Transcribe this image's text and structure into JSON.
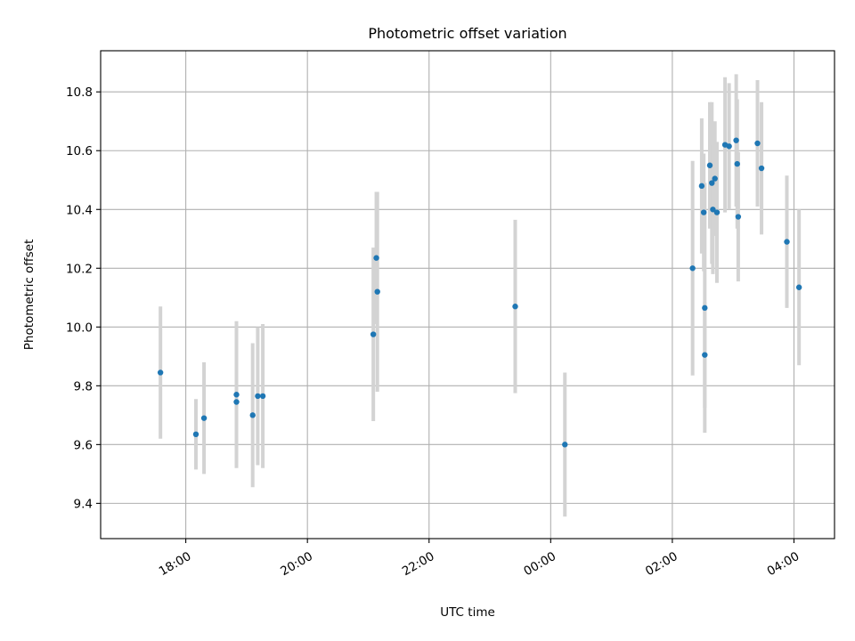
{
  "chart_data": {
    "type": "scatter",
    "title": "Photometric offset variation",
    "xlabel": "UTC time",
    "ylabel": "Photometric offset",
    "x_ticks": [
      "18:00",
      "20:00",
      "22:00",
      "00:00",
      "02:00",
      "04:00"
    ],
    "y_ticks": [
      "9.4",
      "9.6",
      "9.8",
      "10.0",
      "10.2",
      "10.4",
      "10.6",
      "10.8"
    ],
    "xlim": [
      "16:36",
      "04:40"
    ],
    "ylim": [
      9.28,
      10.94
    ],
    "grid": true,
    "marker_color": "#1f77b4",
    "errorbar_color": "#d3d3d3",
    "points": [
      {
        "x": "17:35",
        "y": 9.845,
        "err": 0.225
      },
      {
        "x": "18:10",
        "y": 9.635,
        "err": 0.12
      },
      {
        "x": "18:18",
        "y": 9.69,
        "err": 0.19
      },
      {
        "x": "18:50",
        "y": 9.77,
        "err": 0.25
      },
      {
        "x": "18:50",
        "y": 9.745,
        "err": 0.2
      },
      {
        "x": "19:06",
        "y": 9.7,
        "err": 0.245
      },
      {
        "x": "19:11",
        "y": 9.765,
        "err": 0.235
      },
      {
        "x": "19:16",
        "y": 9.765,
        "err": 0.245
      },
      {
        "x": "21:05",
        "y": 9.975,
        "err": 0.295
      },
      {
        "x": "21:08",
        "y": 10.235,
        "err": 0.225
      },
      {
        "x": "21:09",
        "y": 10.12,
        "err": 0.34
      },
      {
        "x": "23:25",
        "y": 10.07,
        "err": 0.295
      },
      {
        "x": "00:14",
        "y": 9.6,
        "err": 0.245
      },
      {
        "x": "02:20",
        "y": 10.2,
        "err": 0.365
      },
      {
        "x": "02:29",
        "y": 10.48,
        "err": 0.23
      },
      {
        "x": "02:31",
        "y": 10.39,
        "err": 0.2
      },
      {
        "x": "02:32",
        "y": 10.065,
        "err": 0.425
      },
      {
        "x": "02:32",
        "y": 9.905,
        "err": 0.18
      },
      {
        "x": "02:37",
        "y": 10.55,
        "err": 0.215
      },
      {
        "x": "02:39",
        "y": 10.49,
        "err": 0.275
      },
      {
        "x": "02:40",
        "y": 10.4,
        "err": 0.22
      },
      {
        "x": "02:42",
        "y": 10.505,
        "err": 0.195
      },
      {
        "x": "02:44",
        "y": 10.39,
        "err": 0.24
      },
      {
        "x": "02:52",
        "y": 10.62,
        "err": 0.23
      },
      {
        "x": "02:56",
        "y": 10.615,
        "err": 0.215
      },
      {
        "x": "03:03",
        "y": 10.635,
        "err": 0.225
      },
      {
        "x": "03:04",
        "y": 10.555,
        "err": 0.22
      },
      {
        "x": "03:05",
        "y": 10.375,
        "err": 0.22
      },
      {
        "x": "03:24",
        "y": 10.625,
        "err": 0.215
      },
      {
        "x": "03:28",
        "y": 10.54,
        "err": 0.225
      },
      {
        "x": "03:53",
        "y": 10.29,
        "err": 0.225
      },
      {
        "x": "04:05",
        "y": 10.135,
        "err": 0.265
      }
    ]
  }
}
